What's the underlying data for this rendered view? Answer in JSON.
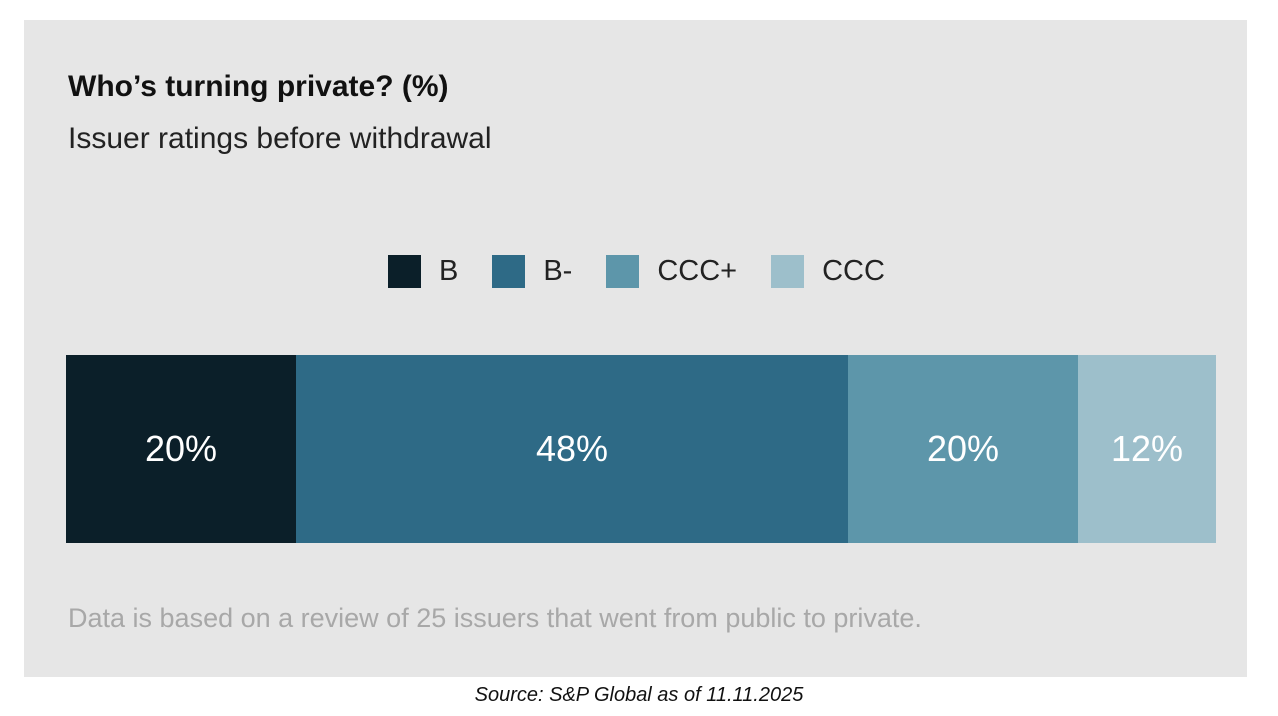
{
  "chart_data": {
    "type": "bar",
    "orientation": "horizontal-stacked-100",
    "title": "Who’s turning private? (%)",
    "subtitle": "Issuer ratings before withdrawal",
    "legend_placement": "top-center",
    "series": [
      {
        "name": "B",
        "value": 20,
        "label": "20%",
        "color": "#0b1f29"
      },
      {
        "name": "B-",
        "value": 48,
        "label": "48%",
        "color": "#2e6a86"
      },
      {
        "name": "CCC+",
        "value": 20,
        "label": "20%",
        "color": "#5d96aa"
      },
      {
        "name": "CCC",
        "value": 12,
        "label": "12%",
        "color": "#9dbfcb"
      }
    ],
    "note": "Data is based on a review of 25 issuers that went from public to private."
  },
  "source": "Source: S&P Global as of 11.11.2025"
}
